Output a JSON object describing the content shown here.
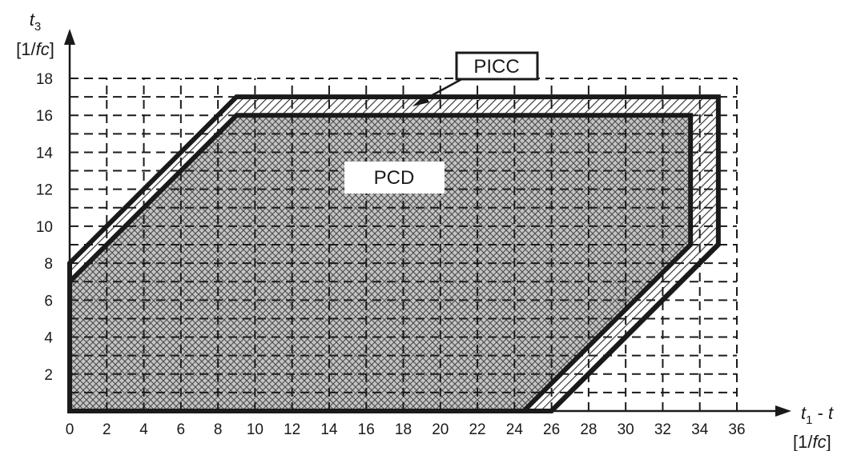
{
  "chart_data": {
    "type": "area",
    "xlabel": {
      "var": "t",
      "sub1": "1",
      "sep": " - ",
      "var2": "t",
      "unit_open": "[1/",
      "unit_var": "fc",
      "unit_close": "]"
    },
    "ylabel": {
      "var": "t",
      "sub": "3",
      "unit_open": "[1/",
      "unit_var": "fc",
      "unit_close": "]"
    },
    "xlim": [
      0,
      36
    ],
    "ylim": [
      0,
      18
    ],
    "x_ticks": [
      "0",
      "2",
      "4",
      "6",
      "8",
      "10",
      "12",
      "14",
      "16",
      "18",
      "20",
      "22",
      "24",
      "26",
      "28",
      "30",
      "32",
      "34",
      "36"
    ],
    "y_ticks": [
      "2",
      "4",
      "6",
      "8",
      "10",
      "12",
      "14",
      "16",
      "18"
    ],
    "grid": "dashed",
    "series": [
      {
        "name": "PICC",
        "fill": "hatched",
        "polygon": [
          [
            0,
            0
          ],
          [
            0,
            8
          ],
          [
            9,
            17
          ],
          [
            35,
            17
          ],
          [
            35,
            9
          ],
          [
            26,
            0
          ]
        ]
      },
      {
        "name": "PCD",
        "fill": "cross-hatched",
        "polygon": [
          [
            0,
            0
          ],
          [
            0,
            7
          ],
          [
            9,
            16
          ],
          [
            33.5,
            16
          ],
          [
            33.5,
            9
          ],
          [
            24.5,
            0
          ]
        ]
      }
    ],
    "annotations": [
      {
        "text": "PICC",
        "type": "callout",
        "points_to": [
          19.5,
          16.5
        ]
      },
      {
        "text": "PCD",
        "type": "label",
        "at": [
          18,
          12.7
        ]
      }
    ]
  }
}
